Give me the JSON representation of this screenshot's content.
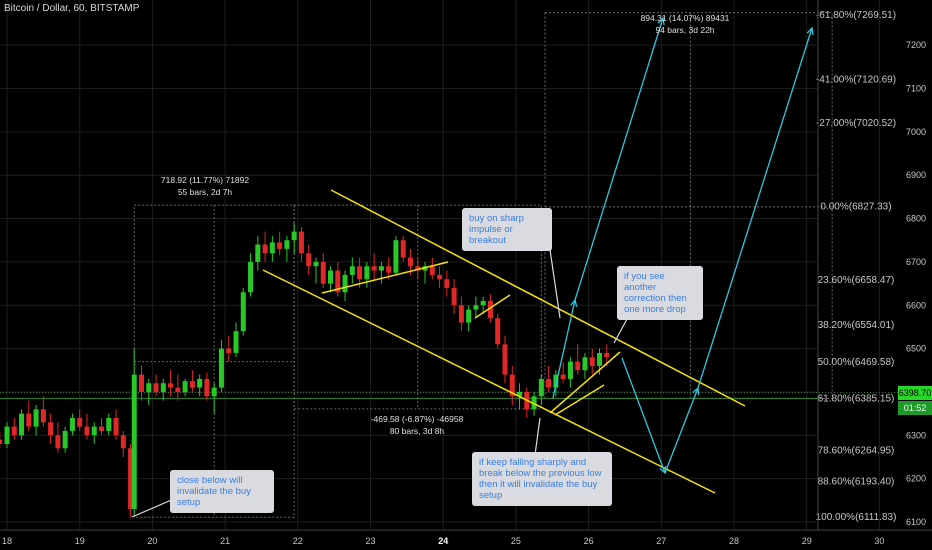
{
  "title": "Bitcoin / Dollar, 60, BITSTAMP",
  "chart_data": {
    "type": "candlestick",
    "xlabel": "",
    "ylabel": "",
    "x_ticks": [
      "18",
      "19",
      "20",
      "21",
      "22",
      "23",
      "24",
      "25",
      "26",
      "27",
      "28",
      "29",
      "30"
    ],
    "y_ticks": [
      6100,
      6200,
      6300,
      6400,
      6500,
      6600,
      6700,
      6800,
      6900,
      7000,
      7100,
      7200
    ],
    "ylim": [
      6095,
      7280
    ],
    "current_price": "6398.70",
    "countdown": "01:52",
    "fib_levels": [
      {
        "label": "-61.80%(7269.51)",
        "value": 7269.51
      },
      {
        "label": "-41.00%(7120.69)",
        "value": 7120.69
      },
      {
        "label": "-27.00%(7020.52)",
        "value": 7020.52
      },
      {
        "label": "0.00%(6827.33)",
        "value": 6827.33
      },
      {
        "label": "23.60%(6658.47)",
        "value": 6658.47
      },
      {
        "label": "38.20%(6554.01)",
        "value": 6554.01
      },
      {
        "label": "50.00%(6469.58)",
        "value": 6469.58
      },
      {
        "label": "61.80%(6385.15)",
        "value": 6385.15
      },
      {
        "label": "78.60%(6264.95)",
        "value": 6264.95
      },
      {
        "label": "88.60%(6193.40)",
        "value": 6193.4
      },
      {
        "label": "100.00%(6111.83)",
        "value": 6111.83
      }
    ],
    "candles": [
      [
        17.9,
        6290,
        6310,
        6270,
        6280
      ],
      [
        18.0,
        6280,
        6330,
        6270,
        6320
      ],
      [
        18.1,
        6320,
        6340,
        6290,
        6300
      ],
      [
        18.2,
        6300,
        6360,
        6290,
        6350
      ],
      [
        18.3,
        6350,
        6380,
        6310,
        6320
      ],
      [
        18.4,
        6320,
        6370,
        6300,
        6360
      ],
      [
        18.5,
        6360,
        6390,
        6320,
        6330
      ],
      [
        18.6,
        6330,
        6350,
        6280,
        6300
      ],
      [
        18.7,
        6300,
        6330,
        6260,
        6270
      ],
      [
        18.8,
        6270,
        6320,
        6260,
        6310
      ],
      [
        18.9,
        6310,
        6350,
        6300,
        6340
      ],
      [
        19.0,
        6340,
        6360,
        6310,
        6320
      ],
      [
        19.1,
        6320,
        6350,
        6290,
        6300
      ],
      [
        19.2,
        6300,
        6330,
        6280,
        6320
      ],
      [
        19.3,
        6320,
        6340,
        6300,
        6310
      ],
      [
        19.4,
        6310,
        6350,
        6300,
        6340
      ],
      [
        19.5,
        6340,
        6360,
        6290,
        6300
      ],
      [
        19.6,
        6300,
        6310,
        6250,
        6270
      ],
      [
        19.7,
        6270,
        6280,
        6110,
        6130
      ],
      [
        19.75,
        6130,
        6500,
        6115,
        6440
      ],
      [
        19.85,
        6440,
        6460,
        6380,
        6400
      ],
      [
        19.95,
        6400,
        6430,
        6370,
        6420
      ],
      [
        20.05,
        6420,
        6440,
        6390,
        6400
      ],
      [
        20.15,
        6400,
        6430,
        6380,
        6420
      ],
      [
        20.25,
        6420,
        6450,
        6390,
        6410
      ],
      [
        20.35,
        6410,
        6440,
        6380,
        6400
      ],
      [
        20.45,
        6400,
        6430,
        6390,
        6425
      ],
      [
        20.55,
        6425,
        6450,
        6400,
        6410
      ],
      [
        20.65,
        6410,
        6440,
        6390,
        6430
      ],
      [
        20.75,
        6430,
        6445,
        6380,
        6390
      ],
      [
        20.85,
        6390,
        6420,
        6350,
        6410
      ],
      [
        20.95,
        6410,
        6520,
        6400,
        6500
      ],
      [
        21.05,
        6500,
        6530,
        6470,
        6490
      ],
      [
        21.15,
        6490,
        6560,
        6480,
        6540
      ],
      [
        21.25,
        6540,
        6640,
        6530,
        6630
      ],
      [
        21.35,
        6630,
        6720,
        6620,
        6700
      ],
      [
        21.45,
        6700,
        6760,
        6680,
        6740
      ],
      [
        21.55,
        6740,
        6770,
        6700,
        6720
      ],
      [
        21.65,
        6720,
        6760,
        6700,
        6745
      ],
      [
        21.75,
        6745,
        6770,
        6715,
        6730
      ],
      [
        21.85,
        6730,
        6760,
        6700,
        6750
      ],
      [
        21.95,
        6750,
        6790,
        6720,
        6770
      ],
      [
        22.05,
        6770,
        6780,
        6700,
        6720
      ],
      [
        22.15,
        6720,
        6740,
        6670,
        6690
      ],
      [
        22.25,
        6690,
        6710,
        6650,
        6700
      ],
      [
        22.35,
        6700,
        6720,
        6640,
        6650
      ],
      [
        22.45,
        6650,
        6690,
        6630,
        6680
      ],
      [
        22.55,
        6680,
        6700,
        6620,
        6630
      ],
      [
        22.65,
        6630,
        6680,
        6610,
        6670
      ],
      [
        22.75,
        6670,
        6710,
        6650,
        6690
      ],
      [
        22.85,
        6690,
        6710,
        6640,
        6660
      ],
      [
        22.95,
        6660,
        6700,
        6640,
        6690
      ],
      [
        23.05,
        6690,
        6720,
        6660,
        6680
      ],
      [
        23.15,
        6680,
        6700,
        6650,
        6690
      ],
      [
        23.25,
        6690,
        6710,
        6660,
        6675
      ],
      [
        23.35,
        6675,
        6760,
        6670,
        6750
      ],
      [
        23.45,
        6750,
        6760,
        6700,
        6710
      ],
      [
        23.55,
        6710,
        6730,
        6670,
        6690
      ],
      [
        23.65,
        6690,
        6710,
        6660,
        6680
      ],
      [
        23.75,
        6680,
        6700,
        6650,
        6690
      ],
      [
        23.85,
        6690,
        6710,
        6660,
        6670
      ],
      [
        23.95,
        6670,
        6690,
        6640,
        6660
      ],
      [
        24.05,
        6660,
        6680,
        6620,
        6640
      ],
      [
        24.15,
        6640,
        6660,
        6580,
        6600
      ],
      [
        24.25,
        6600,
        6620,
        6540,
        6560
      ],
      [
        24.35,
        6560,
        6600,
        6540,
        6590
      ],
      [
        24.45,
        6590,
        6620,
        6570,
        6600
      ],
      [
        24.55,
        6600,
        6620,
        6580,
        6610
      ],
      [
        24.65,
        6610,
        6625,
        6560,
        6570
      ],
      [
        24.75,
        6570,
        6580,
        6500,
        6510
      ],
      [
        24.85,
        6510,
        6530,
        6420,
        6440
      ],
      [
        24.95,
        6440,
        6460,
        6370,
        6390
      ],
      [
        25.05,
        6390,
        6420,
        6360,
        6400
      ],
      [
        25.15,
        6400,
        6410,
        6340,
        6360
      ],
      [
        25.25,
        6360,
        6400,
        6345,
        6390
      ],
      [
        25.35,
        6390,
        6440,
        6370,
        6430
      ],
      [
        25.45,
        6430,
        6460,
        6400,
        6410
      ],
      [
        25.55,
        6410,
        6450,
        6390,
        6440
      ],
      [
        25.65,
        6440,
        6470,
        6420,
        6430
      ],
      [
        25.75,
        6430,
        6480,
        6410,
        6470
      ],
      [
        25.85,
        6470,
        6510,
        6440,
        6450
      ],
      [
        25.95,
        6450,
        6490,
        6430,
        6480
      ],
      [
        26.05,
        6480,
        6500,
        6440,
        6460
      ],
      [
        26.15,
        6460,
        6500,
        6440,
        6490
      ],
      [
        26.25,
        6490,
        6510,
        6460,
        6480
      ]
    ]
  },
  "measurements": [
    {
      "line1": "718.92 (11.77%) 71892",
      "line2": "55 bars, 2d 7h"
    },
    {
      "line1": "-469.58 (-6.87%) -46958",
      "line2": "80 bars, 3d 8h"
    },
    {
      "line1": "894.31 (14.07%) 89431",
      "line2": "94 bars, 3d 22h"
    }
  ],
  "notes": {
    "buy": "buy on sharp impulse or breakout",
    "correction": "if you see another correction then one more drop",
    "close_below": "close below will invalidate the buy setup",
    "falling": "if keep falling sharply and break below the previous low then it will invalidate the buy setup"
  },
  "colors": {
    "up": "#28c828",
    "down": "#e02828",
    "channel": "#f5e400",
    "arrow": "#2ec8e0",
    "fib_line": "#2a8a2a",
    "grid": "#1e1e1e",
    "axis_text": "#c8c8c8",
    "price_tag": "#28d828"
  }
}
